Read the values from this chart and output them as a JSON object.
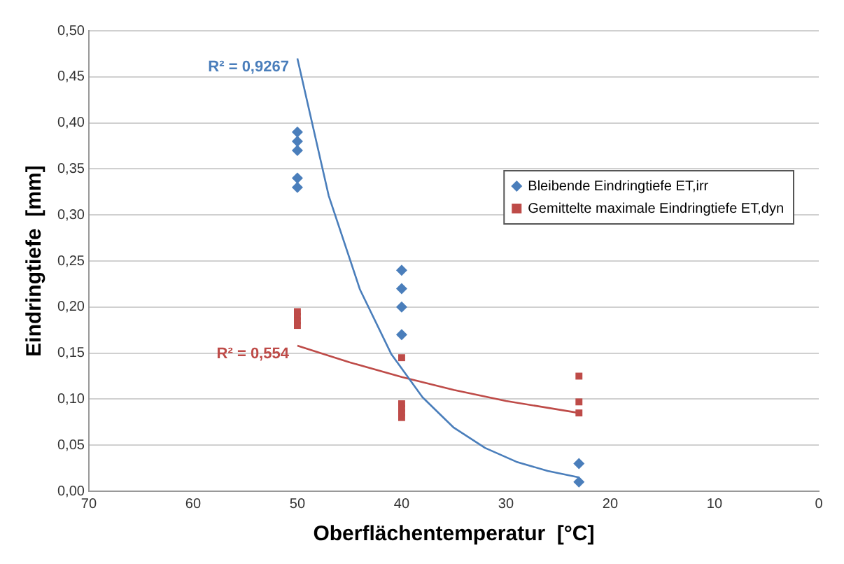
{
  "chart_data": {
    "type": "scatter",
    "xlabel": "Oberflächentemperatur  [°C]",
    "ylabel": "Eindringtiefe  [mm]",
    "xlim": [
      70,
      0
    ],
    "xticks": [
      70,
      60,
      50,
      40,
      30,
      20,
      10,
      0
    ],
    "ylim": [
      0,
      0.5
    ],
    "yticks": [
      {
        "value": 0,
        "label": "0,00"
      },
      {
        "value": 0.05,
        "label": "0,05"
      },
      {
        "value": 0.1,
        "label": "0,10"
      },
      {
        "value": 0.15,
        "label": "0,15"
      },
      {
        "value": 0.2,
        "label": "0,20"
      },
      {
        "value": 0.25,
        "label": "0,25"
      },
      {
        "value": 0.3,
        "label": "0,30"
      },
      {
        "value": 0.35,
        "label": "0,35"
      },
      {
        "value": 0.4,
        "label": "0,40"
      },
      {
        "value": 0.45,
        "label": "0,45"
      },
      {
        "value": 0.5,
        "label": "0,50"
      }
    ],
    "grid": "y",
    "legend": "top right",
    "series": [
      {
        "name": "Bleibende Eindringtiefe ET,irr",
        "color": "#4a7ebb",
        "marker": "diamond",
        "x": [
          50,
          50,
          50,
          50,
          50,
          40,
          40,
          40,
          40,
          23,
          23
        ],
        "values": [
          0.39,
          0.38,
          0.37,
          0.34,
          0.33,
          0.24,
          0.22,
          0.2,
          0.17,
          0.03,
          0.01
        ]
      },
      {
        "name": "Gemittelte maximale Eindringtiefe ET,dyn",
        "color": "#be4b48",
        "marker": "square",
        "x": [
          50,
          50,
          50,
          50,
          40,
          40,
          40,
          40,
          40,
          23,
          23,
          23
        ],
        "values": [
          0.195,
          0.19,
          0.185,
          0.18,
          0.145,
          0.095,
          0.09,
          0.085,
          0.08,
          0.125,
          0.097,
          0.085
        ]
      },
      {
        "type": "line",
        "color": "#4a7ebb",
        "marker": "none",
        "x": [
          50,
          47,
          44,
          41,
          38,
          35,
          32,
          29,
          26,
          23
        ],
        "values": [
          0.47,
          0.321,
          0.219,
          0.149,
          0.102,
          0.069,
          0.047,
          0.032,
          0.022,
          0.015
        ]
      },
      {
        "type": "line",
        "color": "#be4b48",
        "marker": "none",
        "x": [
          50,
          45,
          40,
          35,
          30,
          23
        ],
        "values": [
          0.158,
          0.14,
          0.124,
          0.11,
          0.098,
          0.085
        ]
      }
    ],
    "annotations": [
      "R² = 0,9267",
      "R² = 0,554"
    ]
  }
}
